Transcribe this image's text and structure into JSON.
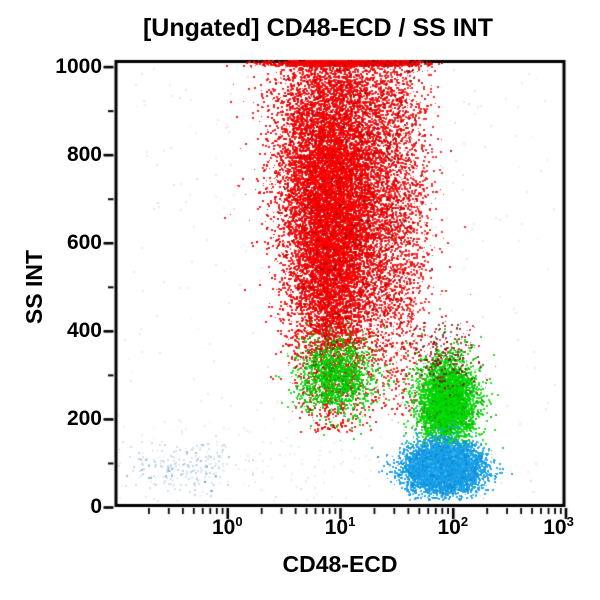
{
  "title": "[Ungated] CD48-ECD / SS INT",
  "chart_data": {
    "type": "scatter",
    "subtype": "flow-cytometry-dot-plot",
    "title": "[Ungated] CD48-ECD / SS INT",
    "xlabel": "CD48-ECD",
    "ylabel": "SS INT",
    "x_scale": "log10",
    "x_range_log10": [
      -1,
      3
    ],
    "x_ticks": [
      {
        "base": "10",
        "exp": "0"
      },
      {
        "base": "10",
        "exp": "1"
      },
      {
        "base": "10",
        "exp": "2"
      },
      {
        "base": "10",
        "exp": "3"
      }
    ],
    "y_range": [
      0,
      1015
    ],
    "y_major_ticks": [
      0,
      200,
      400,
      600,
      800,
      1000
    ],
    "y_minor_step": 100,
    "grid": false,
    "legend": "none",
    "populations": [
      {
        "name": "red-main-high-ss",
        "dist": "gauss",
        "n": 15000,
        "x_log_mean": 0.92,
        "x_log_sd": 0.13,
        "x_sd_grow": 0.14,
        "y_mean": 700,
        "y_sd": 215,
        "y_min": 170,
        "pile_top": true,
        "alpha": 0.88,
        "colors": [
          "#fb0000",
          "#e00000",
          "#a50000"
        ]
      },
      {
        "name": "red-shoulder-band",
        "dist": "gauss",
        "n": 3000,
        "x_log_mean": 1.47,
        "x_log_sd": 0.16,
        "y_mean": 680,
        "y_sd": 250,
        "y_min": 210,
        "pile_top": true,
        "alpha": 0.8,
        "colors": [
          "#f40000",
          "#cf0000",
          "#8e0000"
        ]
      },
      {
        "name": "green-under-red",
        "dist": "gauss",
        "n": 1500,
        "x_log_mean": 0.96,
        "x_log_sd": 0.17,
        "y_mean": 298,
        "y_sd": 42,
        "y_min": 140,
        "alpha": 0.85,
        "colors": [
          "#00d800",
          "#00bd00",
          "#128a12"
        ]
      },
      {
        "name": "green-mid-right",
        "dist": "gauss",
        "n": 4200,
        "x_log_mean": 1.94,
        "x_log_sd": 0.13,
        "y_mean": 243,
        "y_sd": 46,
        "y_min": 100,
        "alpha": 0.85,
        "colors": [
          "#00dc00",
          "#00c300",
          "#0d930d"
        ]
      },
      {
        "name": "dark-specks-above-green",
        "dist": "gauss",
        "n": 240,
        "x_log_mean": 1.92,
        "x_log_sd": 0.15,
        "y_mean": 345,
        "y_sd": 45,
        "y_min": 250,
        "alpha": 0.75,
        "colors": [
          "#8b0000",
          "#c40a30",
          "#1faa1f"
        ]
      },
      {
        "name": "blue-low-ss",
        "dist": "gauss",
        "n": 6500,
        "x_log_mean": 1.91,
        "x_log_sd": 0.16,
        "y_mean": 90,
        "y_sd": 27,
        "y_min": 18,
        "alpha": 0.9,
        "colors": [
          "#18a0e8",
          "#0d8cd6",
          "#45b6f2"
        ]
      },
      {
        "name": "pale-blue-debris-left",
        "dist": "gauss",
        "n": 240,
        "x_log_mean": -0.38,
        "x_log_sd": 0.26,
        "y_mean": 93,
        "y_sd": 30,
        "y_min": 15,
        "alpha": 0.5,
        "colors": [
          "#a9c7e0",
          "#7fb0d2",
          "#3f7fae"
        ]
      },
      {
        "name": "background-noise",
        "dist": "uniform",
        "n": 330,
        "x_log_range": [
          -0.95,
          2.9
        ],
        "y_range": [
          15,
          1000
        ],
        "alpha": 0.3,
        "colors": [
          "#e4a9bd",
          "#b9d2e4",
          "#dd9988",
          "#99cc99",
          "#33aaaa"
        ]
      },
      {
        "name": "bottom-haze",
        "dist": "gauss",
        "n": 160,
        "x_log_mean": 0.4,
        "x_log_sd": 0.7,
        "y_mean": 110,
        "y_sd": 70,
        "y_min": 15,
        "alpha": 0.25,
        "colors": [
          "#d9aebd",
          "#b9cfe2",
          "#99bbdd"
        ]
      }
    ],
    "frame_color": "#000000",
    "background_color": "#ffffff"
  }
}
